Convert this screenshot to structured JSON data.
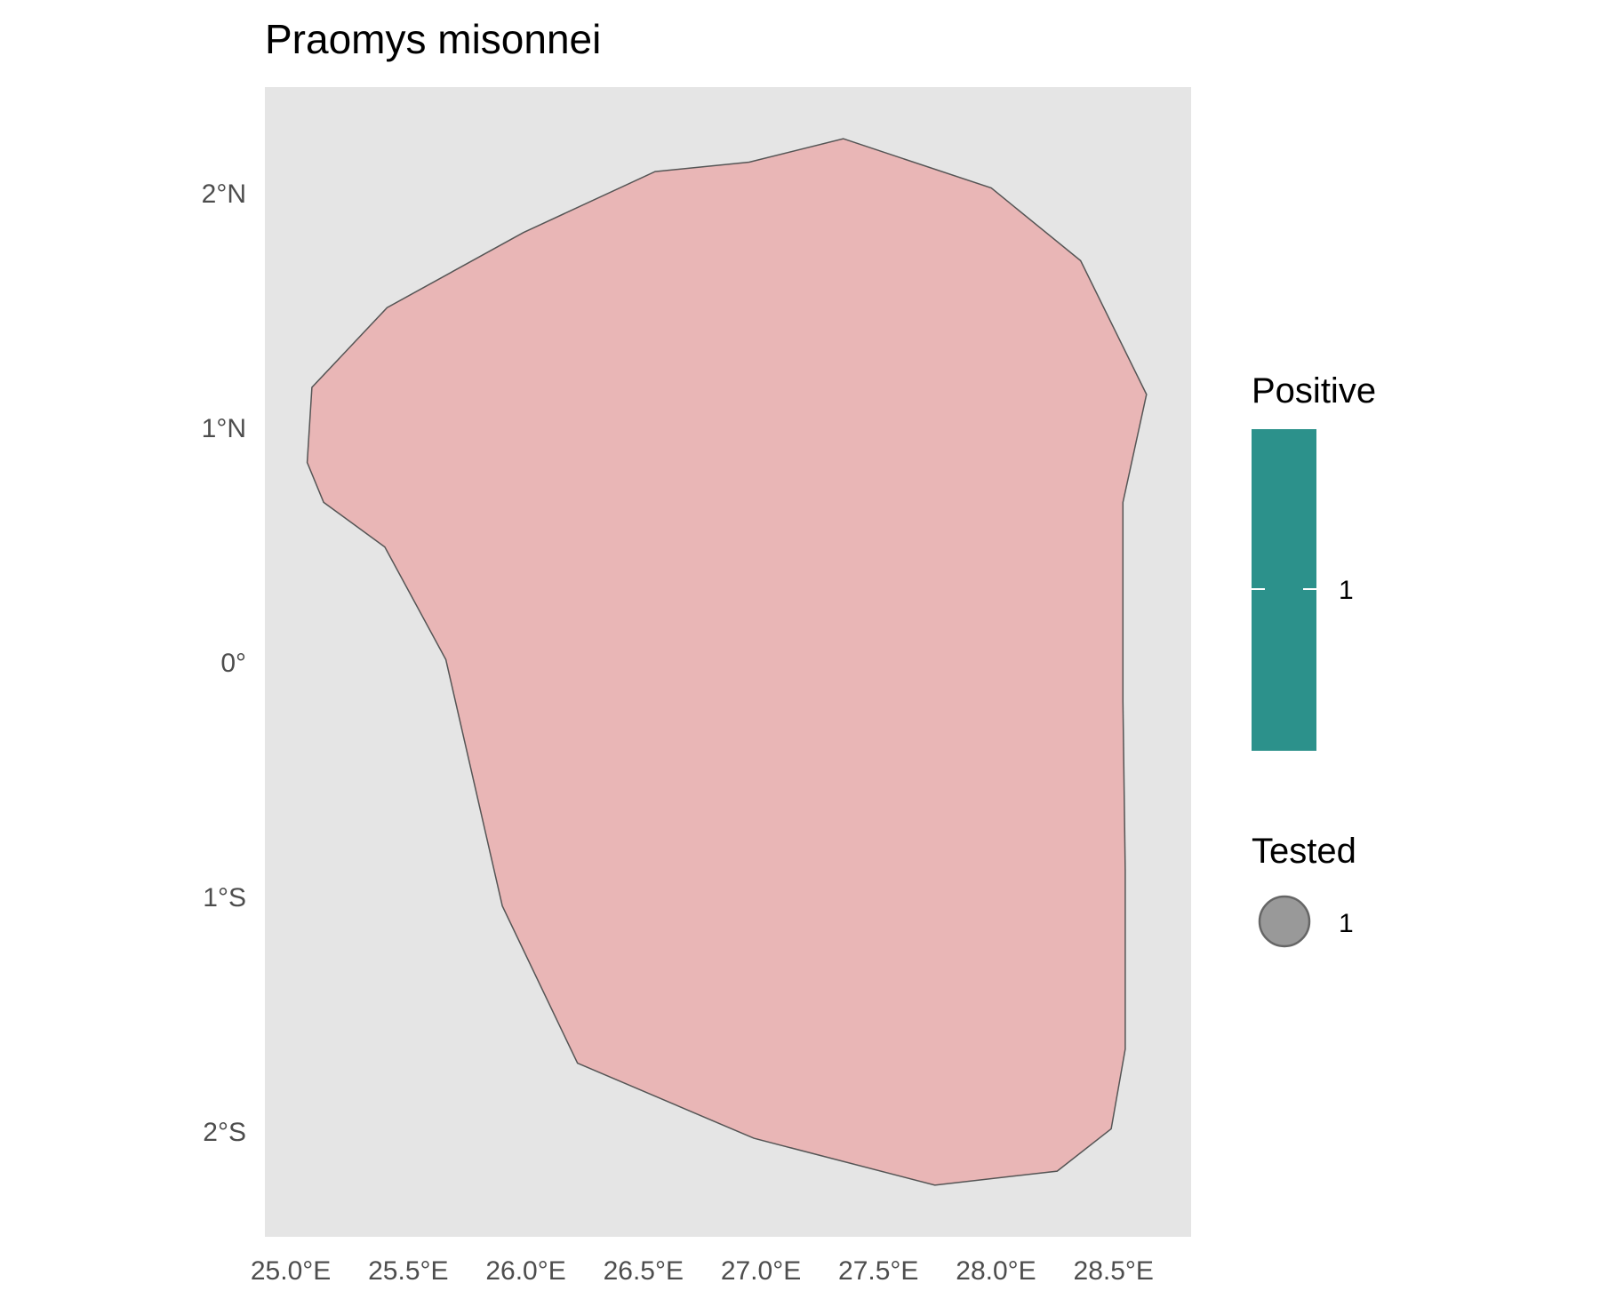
{
  "title": "Praomys misonnei",
  "map": {
    "x_ticks": [
      {
        "value": 25.0,
        "label": "25.0°E"
      },
      {
        "value": 25.5,
        "label": "25.5°E"
      },
      {
        "value": 26.0,
        "label": "26.0°E"
      },
      {
        "value": 26.5,
        "label": "26.5°E"
      },
      {
        "value": 27.0,
        "label": "27.0°E"
      },
      {
        "value": 27.5,
        "label": "27.5°E"
      },
      {
        "value": 28.0,
        "label": "28.0°E"
      },
      {
        "value": 28.5,
        "label": "28.5°E"
      }
    ],
    "y_ticks": [
      {
        "value": 2,
        "label": "2°N"
      },
      {
        "value": 1,
        "label": "1°N"
      },
      {
        "value": 0,
        "label": "0°"
      },
      {
        "value": -1,
        "label": "1°S"
      },
      {
        "value": -2,
        "label": "2°S"
      }
    ],
    "xlim": [
      24.89,
      28.83
    ],
    "ylim": [
      -2.45,
      2.45
    ],
    "grid": false,
    "panel_color": "#e5e5e5",
    "range_fill": "#e9b6b6",
    "range_stroke": "#555555",
    "range_polygon": [
      [
        27.35,
        2.23
      ],
      [
        27.98,
        2.02
      ],
      [
        28.36,
        1.71
      ],
      [
        28.64,
        1.14
      ],
      [
        28.54,
        0.68
      ],
      [
        28.54,
        -0.17
      ],
      [
        28.55,
        -0.89
      ],
      [
        28.55,
        -1.65
      ],
      [
        28.49,
        -1.99
      ],
      [
        28.26,
        -2.17
      ],
      [
        27.74,
        -2.23
      ],
      [
        26.97,
        -2.03
      ],
      [
        26.22,
        -1.71
      ],
      [
        25.9,
        -1.04
      ],
      [
        25.66,
        0.01
      ],
      [
        25.4,
        0.49
      ],
      [
        25.14,
        0.68
      ],
      [
        25.07,
        0.85
      ],
      [
        25.09,
        1.17
      ],
      [
        25.41,
        1.51
      ],
      [
        25.99,
        1.83
      ],
      [
        26.55,
        2.09
      ],
      [
        26.95,
        2.13
      ],
      [
        27.35,
        2.23
      ]
    ]
  },
  "legend": {
    "positive": {
      "title": "Positive",
      "label": "1",
      "color": "#2c918b"
    },
    "tested": {
      "title": "Tested",
      "label": "1",
      "color": "#999999",
      "stroke": "#666666"
    }
  }
}
